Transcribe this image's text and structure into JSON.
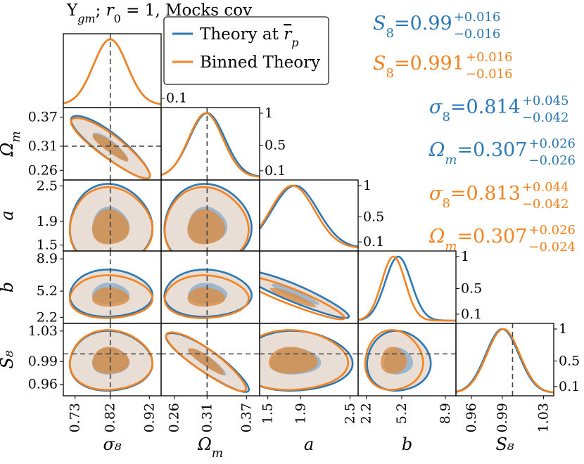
{
  "title": "Y_gm; r_0 = 1, Mocks cov",
  "legend": [
    {
      "label": "Theory at r̅_p",
      "color": "#2a78b5"
    },
    {
      "label": "Binned Theory",
      "color": "#f5821f"
    }
  ],
  "colors": {
    "blue": "#2a78b5",
    "orange": "#f5821f",
    "fill_outer": "#e8ded5",
    "fill_inner_blue": "#8fb0cc",
    "fill_inner_orange": "#d98c45",
    "marker": "#444444"
  },
  "constraints": [
    {
      "param": "S8",
      "value": "0.99",
      "upper": "+0.016",
      "lower": "−0.016",
      "color": "#2a78b5"
    },
    {
      "param": "S8",
      "value": "0.991",
      "upper": "+0.016",
      "lower": "−0.016",
      "color": "#f5821f"
    },
    {
      "param": "sigma8",
      "value": "0.814",
      "upper": "+0.045",
      "lower": "−0.042",
      "color": "#2a78b5"
    },
    {
      "param": "Omega_m",
      "value": "0.307",
      "upper": "+0.026",
      "lower": "−0.026",
      "color": "#2a78b5"
    },
    {
      "param": "sigma8",
      "value": "0.813",
      "upper": "+0.044",
      "lower": "−0.042",
      "color": "#f5821f"
    },
    {
      "param": "Omega_m",
      "value": "0.307",
      "upper": "+0.026",
      "lower": "−0.024",
      "color": "#f5821f"
    }
  ],
  "chart_data": {
    "type": "corner",
    "parameters": [
      {
        "key": "sigma8",
        "label": "σ₈",
        "ticks": [
          "0.73",
          "0.82",
          "0.92"
        ],
        "range": [
          0.7,
          0.95
        ],
        "truth": 0.82
      },
      {
        "key": "Omega_m",
        "label": "Ω_m",
        "ticks": [
          "0.26",
          "0.31",
          "0.37"
        ],
        "range": [
          0.24,
          0.39
        ],
        "truth": 0.31
      },
      {
        "key": "a",
        "label": "a",
        "ticks": [
          "1.5",
          "1.9",
          "2.5"
        ],
        "range": [
          1.4,
          2.6
        ]
      },
      {
        "key": "b",
        "label": "b",
        "ticks": [
          "2.2",
          "5.2",
          "8.9"
        ],
        "range": [
          1.5,
          9.8
        ]
      },
      {
        "key": "S8",
        "label": "S₈",
        "ticks": [
          "0.96",
          "0.99",
          "1.03"
        ],
        "range": [
          0.945,
          1.04
        ],
        "truth": 1.0
      }
    ],
    "diag_ticks": [
      "1",
      "0.5",
      "0.1"
    ],
    "first_diag_ticks": [
      "0.1"
    ],
    "series": [
      {
        "name": "Theory at r̅_p",
        "color": "#2a78b5",
        "marginals": {
          "sigma8": {
            "mean": 0.82,
            "sd": 0.043
          },
          "Omega_m": {
            "mean": 0.31,
            "sd": 0.027
          },
          "a": {
            "mean": 1.83,
            "sd": 0.28
          },
          "b": {
            "mean": 4.9,
            "sd": 1.1
          },
          "S8": {
            "mean": 0.99,
            "sd": 0.016
          }
        }
      },
      {
        "name": "Binned Theory",
        "color": "#f5821f",
        "marginals": {
          "sigma8": {
            "mean": 0.82,
            "sd": 0.043
          },
          "Omega_m": {
            "mean": 0.308,
            "sd": 0.026
          },
          "a": {
            "mean": 1.8,
            "sd": 0.27
          },
          "b": {
            "mean": 4.5,
            "sd": 1.0
          },
          "S8": {
            "mean": 0.991,
            "sd": 0.016
          }
        }
      }
    ]
  }
}
